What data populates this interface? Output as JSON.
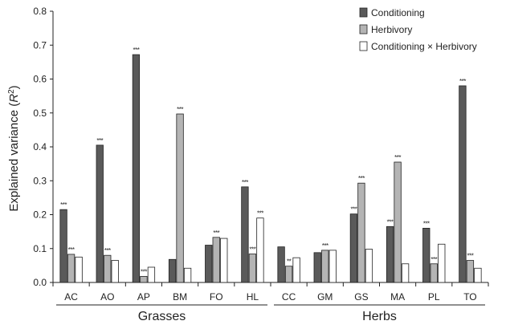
{
  "chart_data": {
    "type": "bar",
    "ylabel": "Explained variance (",
    "ylabel_symbol": "R",
    "ylabel_superscript": "2",
    "ylabel_close": ")",
    "ylim": [
      0,
      0.8
    ],
    "yticks": [
      "0.0",
      "0.1",
      "0.2",
      "0.3",
      "0.4",
      "0.5",
      "0.6",
      "0.7",
      "0.8"
    ],
    "grid": false,
    "legend_position": "top-right",
    "categories": [
      "AC",
      "AO",
      "AP",
      "BM",
      "FO",
      "HL",
      "CC",
      "GM",
      "GS",
      "MA",
      "PL",
      "TO"
    ],
    "groups": [
      {
        "name": "Grasses",
        "members": [
          "AC",
          "AO",
          "AP",
          "BM",
          "FO",
          "HL"
        ]
      },
      {
        "name": "Herbs",
        "members": [
          "CC",
          "GM",
          "GS",
          "MA",
          "PL",
          "TO"
        ]
      }
    ],
    "series": [
      {
        "name": "Conditioning",
        "color": "#5a5a5a",
        "values": [
          0.215,
          0.405,
          0.672,
          0.068,
          0.11,
          0.282,
          0.105,
          0.088,
          0.202,
          0.165,
          0.16,
          0.58
        ],
        "significance": [
          "***",
          "***",
          "***",
          "",
          "",
          "***",
          "",
          "",
          "***",
          "***",
          "***",
          "***"
        ]
      },
      {
        "name": "Herbivory",
        "color": "#b4b4b4",
        "values": [
          0.083,
          0.08,
          0.018,
          0.497,
          0.133,
          0.084,
          0.048,
          0.095,
          0.293,
          0.355,
          0.055,
          0.065
        ],
        "significance": [
          "***",
          "***",
          "***",
          "***",
          "***",
          "***",
          "**",
          "***",
          "***",
          "***",
          "***",
          "***"
        ]
      },
      {
        "name": "Conditioning × Herbivory",
        "color": "#ffffff",
        "values": [
          0.075,
          0.065,
          0.045,
          0.042,
          0.13,
          0.19,
          0.073,
          0.095,
          0.098,
          0.055,
          0.113,
          0.042
        ],
        "significance": [
          "",
          "",
          "",
          "",
          "",
          "***",
          "",
          "",
          "",
          "",
          "",
          ""
        ]
      }
    ]
  }
}
